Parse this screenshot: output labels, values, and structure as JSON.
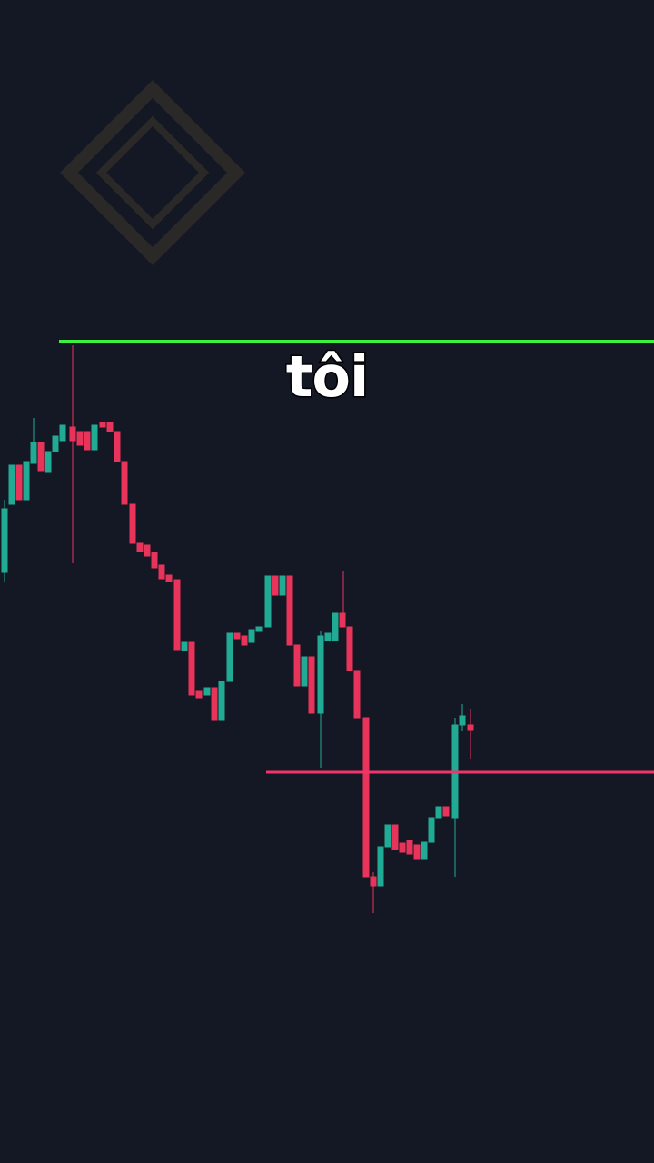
{
  "caption": "tôi"
}
